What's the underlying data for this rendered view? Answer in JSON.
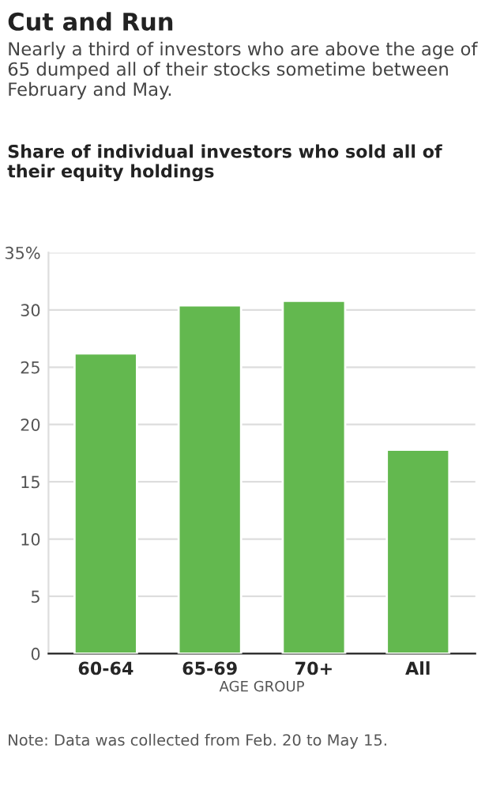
{
  "chart_data": {
    "type": "bar",
    "title": "Cut and Run",
    "subtitle": "Nearly a third of investors who are above the age of 65 dumped all of their stocks sometime between February and May.",
    "ylabel": "Share of individual investors who sold all of their equity holdings",
    "xlabel": "AGE GROUP",
    "categories": [
      "60-64",
      "65-69",
      "70+",
      "All"
    ],
    "values": [
      26.2,
      30.4,
      30.8,
      17.8
    ],
    "color": "#63b84f",
    "ylim": [
      0,
      35
    ],
    "yticks": [
      0,
      5,
      10,
      15,
      20,
      25,
      30,
      {
        "value": 35,
        "label": "35%"
      }
    ],
    "grid": "y",
    "annotations": [
      "Note: Data was collected from Feb. 20 to May 15."
    ]
  }
}
